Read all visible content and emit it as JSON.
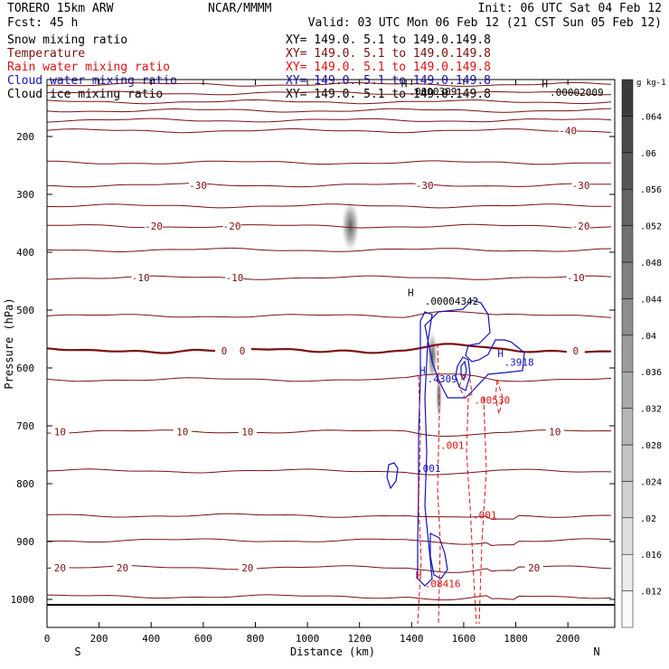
{
  "header": {
    "model": "TORERO  15km ARW",
    "org": "NCAR/MMMM",
    "init": "Init: 06 UTC Sat 04 Feb 12",
    "fcst": "Fcst:   45 h",
    "valid": "Valid: 03 UTC Mon 06 Feb 12 (21 CST Sun 05 Feb 12)"
  },
  "colors": {
    "snow": "#000000",
    "temperature": "#7a1010",
    "rain": "#dd1111",
    "cloud_water": "#1111bb",
    "cloud_ice": "#000000",
    "frame": "#000000"
  },
  "chart_data": {
    "type": "vertical cross-section (contour + shaded)",
    "fields": [
      {
        "name": "Snow mixing ratio",
        "xy": "XY= 149.0.  5.1 to 149.0.149.8",
        "render": "shaded"
      },
      {
        "name": "Temperature",
        "xy": "XY= 149.0.  5.1 to 149.0.149.8",
        "render": "contour"
      },
      {
        "name": "Rain water mixing ratio",
        "xy": "XY= 149.0.  5.1 to 149.0.149.8",
        "render": "contour"
      },
      {
        "name": "Cloud water mixing ratio",
        "xy": "XY= 149.0.  5.1 to 149.0.149.8",
        "render": "contour"
      },
      {
        "name": "Cloud ice mixing ratio",
        "xy": "XY= 149.0.  5.1 to 149.0.149.8",
        "render": "contour"
      }
    ],
    "xlabel": "Distance (km)",
    "ylabel": "Pressure (hPa)",
    "xlim": [
      0,
      2180
    ],
    "ylim": [
      1025,
      90
    ],
    "x_ticks": [
      0,
      200,
      400,
      600,
      800,
      1000,
      1200,
      1400,
      1600,
      1800,
      2000
    ],
    "y_ticks": [
      200,
      300,
      400,
      500,
      600,
      700,
      800,
      900,
      1000
    ],
    "orientation": {
      "left": "S",
      "right": "N"
    },
    "colorbar": {
      "unit": "g kg-1",
      "labels": [
        ".012",
        ".016",
        ".02",
        ".024",
        ".028",
        ".032",
        ".036",
        ".04",
        ".044",
        ".048",
        ".052",
        ".056",
        ".06",
        ".064"
      ],
      "min": 0.008,
      "max": 0.068,
      "step": 0.004
    },
    "temperature_contours": [
      {
        "temp": -40,
        "pressure": 110,
        "label_x": []
      },
      {
        "temp": -40,
        "pressure": 125,
        "label_x": []
      },
      {
        "temp": -40,
        "pressure": 140,
        "label_x": []
      },
      {
        "temp": -40,
        "pressure": 155,
        "label_x": []
      },
      {
        "temp": -40,
        "pressure": 172,
        "label_x": []
      },
      {
        "temp": -40,
        "pressure": 190,
        "label_x": [
          2000
        ]
      },
      {
        "temp": -35,
        "pressure": 245,
        "label_x": []
      },
      {
        "temp": -30,
        "pressure": 284,
        "label_x": [
          580,
          1450,
          2050
        ]
      },
      {
        "temp": -25,
        "pressure": 320,
        "label_x": []
      },
      {
        "temp": -20,
        "pressure": 355,
        "label_x": [
          410,
          710,
          2050
        ]
      },
      {
        "temp": -15,
        "pressure": 396,
        "label_x": []
      },
      {
        "temp": -10,
        "pressure": 444,
        "label_x": [
          360,
          720,
          2030
        ]
      },
      {
        "temp": -5,
        "pressure": 510,
        "label_x": []
      },
      {
        "temp": 0,
        "pressure": 570,
        "label_x": [
          680,
          750,
          2030
        ]
      },
      {
        "temp": 5,
        "pressure": 620,
        "label_x": []
      },
      {
        "temp": 10,
        "pressure": 710,
        "label_x": [
          50,
          520,
          770,
          1950
        ]
      },
      {
        "temp": 12,
        "pressure": 778,
        "label_x": []
      },
      {
        "temp": 15,
        "pressure": 855,
        "label_x": []
      },
      {
        "temp": 18,
        "pressure": 898,
        "label_x": []
      },
      {
        "temp": 20,
        "pressure": 945,
        "label_x": [
          50,
          290,
          770,
          1870
        ]
      },
      {
        "temp": 22,
        "pressure": 995,
        "label_x": []
      }
    ],
    "snow_patches": [
      {
        "x": 1165,
        "pressure": 355,
        "x_halfwidth": 35,
        "p_halfheight": 45
      },
      {
        "x": 1480,
        "pressure": 580,
        "x_halfwidth": 20,
        "p_halfheight": 45
      },
      {
        "x": 1505,
        "pressure": 650,
        "x_halfwidth": 12,
        "p_halfheight": 40
      }
    ],
    "annotations": [
      {
        "text": "H",
        "x": 1360,
        "pressure": 115,
        "color": "black"
      },
      {
        "text": ".0000309",
        "x": 1390,
        "pressure": 128,
        "color": "black"
      },
      {
        "text": "H",
        "x": 1900,
        "pressure": 115,
        "color": "black"
      },
      {
        "text": ".00002009",
        "x": 1930,
        "pressure": 130,
        "color": "black"
      },
      {
        "text": "H",
        "x": 1385,
        "pressure": 476,
        "color": "black"
      },
      {
        "text": ".00004342",
        "x": 1450,
        "pressure": 491,
        "color": "black"
      },
      {
        "text": "H",
        "x": 1430,
        "pressure": 610,
        "color": "blue"
      },
      {
        "text": ".4309",
        "x": 1460,
        "pressure": 625,
        "color": "blue"
      },
      {
        "text": "H",
        "x": 1730,
        "pressure": 581,
        "color": "blue"
      },
      {
        "text": ".3918",
        "x": 1755,
        "pressure": 596,
        "color": "blue"
      },
      {
        "text": ".00530",
        "x": 1640,
        "pressure": 662,
        "color": "red"
      },
      {
        "text": ".001",
        "x": 1510,
        "pressure": 740,
        "color": "red"
      },
      {
        "text": ".001",
        "x": 1420,
        "pressure": 780,
        "color": "blue"
      },
      {
        "text": ".001",
        "x": 1635,
        "pressure": 860,
        "color": "red"
      },
      {
        "text": "H",
        "x": 1415,
        "pressure": 964,
        "color": "red"
      },
      {
        "text": ".08416",
        "x": 1450,
        "pressure": 979,
        "color": "red"
      }
    ]
  }
}
